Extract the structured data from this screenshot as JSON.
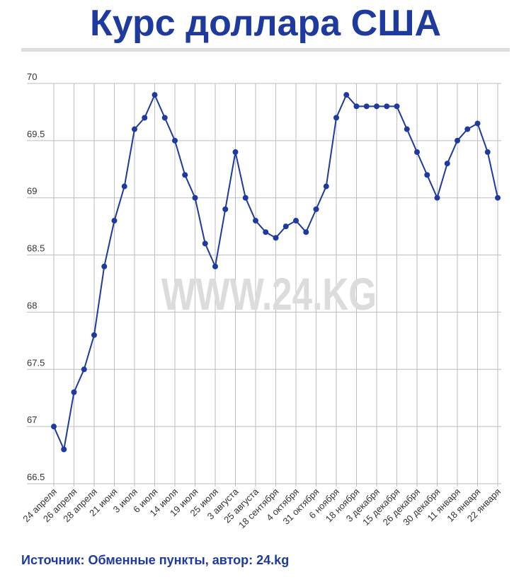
{
  "chart_data": {
    "type": "line",
    "title": "Курс доллара США",
    "watermark": "WWW.24.KG",
    "source": "Источник: Обменные пункты, автор: 24.kg",
    "categories": [
      "24 апреля",
      null,
      "26 апреля",
      null,
      "28 апреля",
      null,
      "21 июня",
      null,
      "3 июля",
      null,
      "6 июля",
      null,
      "14 июля",
      null,
      "19 июля",
      null,
      "25 июля",
      null,
      "3 августа",
      null,
      "25 августа",
      null,
      "18 сентября",
      null,
      "4 октября",
      null,
      "31 октября",
      null,
      "6 ноября",
      null,
      "18 ноября",
      null,
      "3 декабря",
      null,
      "15 декабря",
      null,
      "26 декабря",
      null,
      "30 декабря",
      null,
      "11 января",
      null,
      "18 января",
      null,
      "22 января"
    ],
    "values": [
      67.0,
      66.8,
      67.3,
      67.5,
      67.8,
      68.4,
      68.8,
      69.1,
      69.6,
      69.7,
      69.9,
      69.7,
      69.5,
      69.2,
      69.0,
      68.6,
      68.4,
      68.9,
      69.4,
      69.0,
      68.8,
      68.7,
      68.65,
      68.75,
      68.8,
      68.7,
      68.9,
      69.1,
      69.7,
      69.9,
      69.8,
      69.8,
      69.8,
      69.8,
      69.8,
      69.6,
      69.4,
      69.2,
      69.0,
      69.3,
      69.5,
      69.6,
      69.65,
      69.4,
      69.0
    ],
    "color": "#1f3a9e",
    "ylim": [
      66.5,
      70
    ],
    "yticks": [
      66.5,
      67,
      67.5,
      68,
      68.5,
      69,
      69.5,
      70
    ],
    "grid": true
  }
}
